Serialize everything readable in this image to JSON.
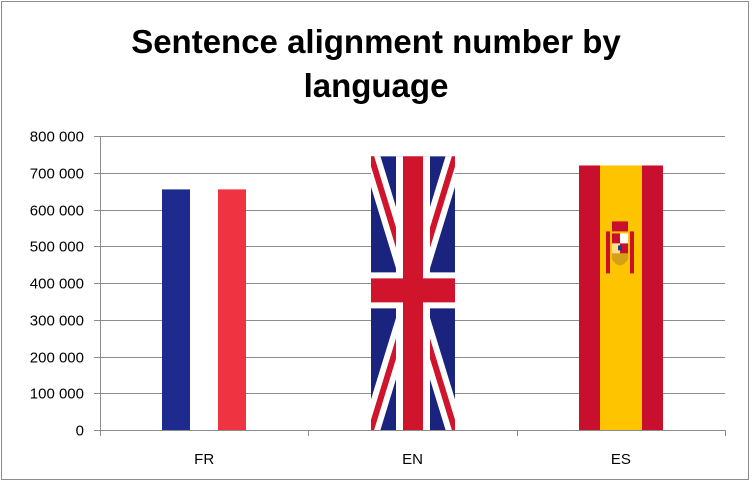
{
  "chart_data": {
    "type": "bar",
    "title_lines": [
      "Sentence alignment number by",
      "language"
    ],
    "xlabel": "",
    "ylabel": "",
    "categories": [
      "FR",
      "EN",
      "ES"
    ],
    "values": [
      655000,
      745000,
      720000
    ],
    "ylim": [
      0,
      800000
    ],
    "yticks": [
      0,
      100000,
      200000,
      300000,
      400000,
      500000,
      600000,
      700000,
      800000
    ],
    "ytick_labels": [
      "0",
      "100 000",
      "200 000",
      "300 000",
      "400 000",
      "500 000",
      "600 000",
      "700 000",
      "800 000"
    ],
    "grid": true,
    "legend": "none",
    "bar_fill": [
      "flag-france",
      "flag-united-kingdom",
      "flag-spain"
    ],
    "colors": {
      "grid": "#8c8c8c",
      "fr_blue": "#1f2a8f",
      "fr_white": "#ffffff",
      "fr_red": "#ef3340",
      "uk_blue": "#1a237e",
      "uk_red": "#cf142b",
      "uk_white": "#ffffff",
      "es_red": "#c8102e",
      "es_yellow": "#ffc400"
    }
  }
}
